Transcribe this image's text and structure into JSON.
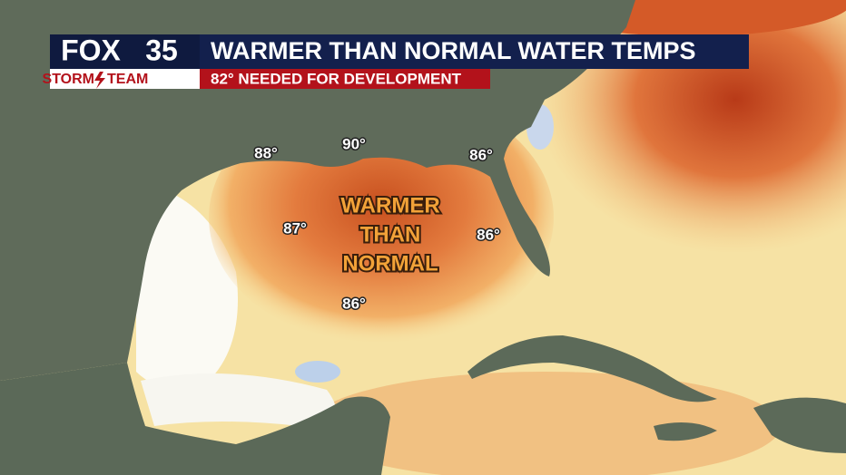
{
  "header": {
    "logo": {
      "brand": "FOX",
      "channel": "35",
      "team_left": "STORM",
      "team_right": "TEAM"
    },
    "title": "WARMER THAN NORMAL WATER TEMPS",
    "subtitle": "82° NEEDED FOR DEVELOPMENT"
  },
  "map": {
    "annotation": [
      "WARMER",
      "THAN",
      "NORMAL"
    ],
    "labels": [
      "88°",
      "90°",
      "86°",
      "87°",
      "86°",
      "86°"
    ]
  }
}
